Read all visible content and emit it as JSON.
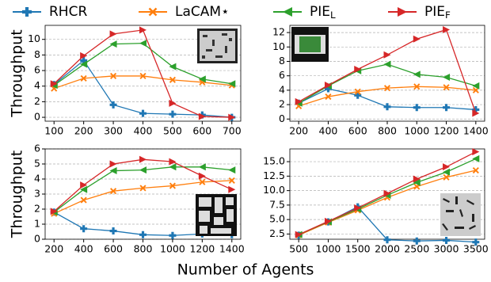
{
  "legend": [
    {
      "name": "RHCR",
      "color": "#1f77b4",
      "marker": "plus"
    },
    {
      "name": "LaCAM⋆",
      "color": "#ff7f0e",
      "marker": "x"
    },
    {
      "name": "PIE_L",
      "color": "#2ca02c",
      "marker": "triangle-left"
    },
    {
      "name": "PIE_F",
      "color": "#d62728",
      "marker": "triangle-right"
    }
  ],
  "xlabel": "Number of Agents",
  "chart_data": [
    {
      "type": "line",
      "ylabel": "Throughput",
      "grid": true,
      "x": [
        100,
        200,
        300,
        400,
        500,
        600,
        700
      ],
      "xlim": [
        70,
        730
      ],
      "xticks": [
        100,
        200,
        300,
        400,
        500,
        600,
        700
      ],
      "ylim": [
        -0.5,
        11.8
      ],
      "yticks": [
        0,
        2,
        4,
        6,
        8,
        10
      ],
      "series": [
        {
          "values": [
            4.2,
            7.3,
            1.6,
            0.5,
            0.4,
            0.3,
            0.0
          ]
        },
        {
          "values": [
            3.7,
            5.0,
            5.3,
            5.3,
            4.8,
            4.5,
            4.1
          ]
        },
        {
          "values": [
            4.1,
            6.8,
            9.4,
            9.5,
            6.5,
            4.9,
            4.3
          ]
        },
        {
          "values": [
            4.3,
            7.9,
            10.7,
            11.2,
            1.8,
            0.1,
            0.0
          ]
        }
      ]
    },
    {
      "type": "line",
      "grid": true,
      "x": [
        200,
        400,
        600,
        800,
        1000,
        1200,
        1400
      ],
      "xlim": [
        140,
        1460
      ],
      "xticks": [
        200,
        400,
        600,
        800,
        1000,
        1200,
        1400
      ],
      "ylim": [
        -0.3,
        13.0
      ],
      "yticks": [
        0,
        2,
        4,
        6,
        8,
        10,
        12
      ],
      "series": [
        {
          "values": [
            2.2,
            4.2,
            3.3,
            1.7,
            1.6,
            1.6,
            1.3
          ]
        },
        {
          "values": [
            1.8,
            3.1,
            3.8,
            4.3,
            4.5,
            4.4,
            4.0
          ]
        },
        {
          "values": [
            2.2,
            4.6,
            6.7,
            7.6,
            6.2,
            5.8,
            4.6
          ]
        },
        {
          "values": [
            2.4,
            4.7,
            6.9,
            8.9,
            11.1,
            12.4,
            0.8
          ]
        }
      ]
    },
    {
      "type": "line",
      "ylabel": "Throughput",
      "grid": true,
      "x": [
        200,
        400,
        600,
        800,
        1000,
        1200,
        1400
      ],
      "xlim": [
        140,
        1460
      ],
      "xticks": [
        200,
        400,
        600,
        800,
        1000,
        1200,
        1400
      ],
      "ylim": [
        0,
        6
      ],
      "yticks": [
        0,
        1,
        2,
        3,
        4,
        5,
        6
      ],
      "series": [
        {
          "values": [
            1.8,
            0.7,
            0.55,
            0.3,
            0.25,
            0.35,
            0.3
          ]
        },
        {
          "values": [
            1.7,
            2.6,
            3.2,
            3.4,
            3.55,
            3.8,
            3.9
          ]
        },
        {
          "values": [
            1.8,
            3.3,
            4.55,
            4.6,
            4.8,
            4.8,
            4.6
          ]
        },
        {
          "values": [
            1.85,
            3.6,
            5.0,
            5.3,
            5.15,
            4.2,
            3.3
          ]
        }
      ]
    },
    {
      "type": "line",
      "grid": true,
      "x": [
        500,
        1000,
        1500,
        2000,
        2500,
        3000,
        3500
      ],
      "xlim": [
        350,
        3650
      ],
      "xticks": [
        500,
        1000,
        1500,
        2000,
        2500,
        3000,
        3500
      ],
      "ylim": [
        1.6,
        17.2
      ],
      "yticks": [
        2.5,
        {
          "value": 5,
          "label": "5.0"
        },
        7.5,
        {
          "value": 10,
          "label": "10.0"
        },
        12.5,
        {
          "value": 15,
          "label": "15.0"
        }
      ],
      "series": [
        {
          "values": [
            2.3,
            4.6,
            7.2,
            1.5,
            1.3,
            1.4,
            1.1
          ]
        },
        {
          "values": [
            2.3,
            4.5,
            6.6,
            8.8,
            10.7,
            12.3,
            13.5
          ]
        },
        {
          "values": [
            2.4,
            4.6,
            6.8,
            9.2,
            11.4,
            13.2,
            15.5
          ]
        },
        {
          "values": [
            2.4,
            4.7,
            7.0,
            9.5,
            12.0,
            14.1,
            16.7
          ]
        }
      ]
    }
  ]
}
